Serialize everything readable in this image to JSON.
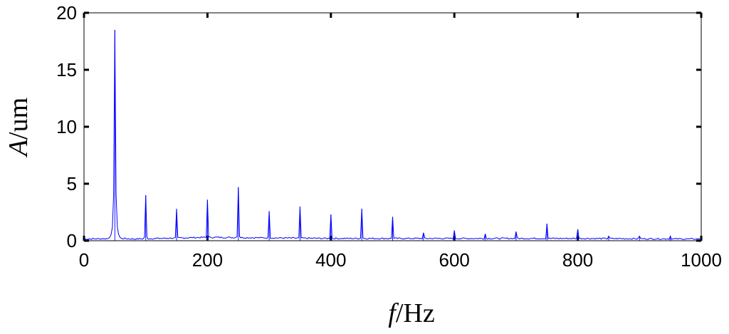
{
  "chart_data": {
    "type": "line",
    "xlabel": "f/Hz",
    "xlabel_italic": "f",
    "xlabel_rest": "/Hz",
    "ylabel": "A/um",
    "ylabel_italic": "A",
    "ylabel_rest": "/um",
    "xlim": [
      0,
      1000
    ],
    "ylim": [
      0,
      20
    ],
    "xticks": [
      0,
      200,
      400,
      600,
      800,
      1000
    ],
    "xtick_labels": [
      "0",
      "200",
      "400",
      "600",
      "800",
      "1000"
    ],
    "yticks": [
      0,
      5,
      10,
      15,
      20
    ],
    "ytick_labels": [
      "0",
      "5",
      "10",
      "15",
      "20"
    ],
    "grid": false,
    "legend": "none",
    "line_color": "#0000ff",
    "x_step": 2,
    "baseline": [
      [
        0,
        0.15
      ],
      [
        60,
        0.2
      ],
      [
        80,
        0.15
      ],
      [
        200,
        0.3
      ],
      [
        400,
        0.2
      ],
      [
        600,
        0.2
      ],
      [
        800,
        0.2
      ],
      [
        1000,
        0.15
      ]
    ],
    "peaks": [
      {
        "f": 50,
        "amplitude": 18.5
      },
      {
        "f": 100,
        "amplitude": 4.0
      },
      {
        "f": 150,
        "amplitude": 2.8
      },
      {
        "f": 200,
        "amplitude": 3.6
      },
      {
        "f": 250,
        "amplitude": 4.7
      },
      {
        "f": 300,
        "amplitude": 2.6
      },
      {
        "f": 350,
        "amplitude": 3.0
      },
      {
        "f": 400,
        "amplitude": 2.3
      },
      {
        "f": 450,
        "amplitude": 2.8
      },
      {
        "f": 500,
        "amplitude": 2.1
      },
      {
        "f": 550,
        "amplitude": 0.7
      },
      {
        "f": 600,
        "amplitude": 0.9
      },
      {
        "f": 650,
        "amplitude": 0.6
      },
      {
        "f": 700,
        "amplitude": 0.8
      },
      {
        "f": 750,
        "amplitude": 1.5
      },
      {
        "f": 800,
        "amplitude": 1.0
      },
      {
        "f": 850,
        "amplitude": 0.4
      },
      {
        "f": 900,
        "amplitude": 0.4
      },
      {
        "f": 950,
        "amplitude": 0.4
      }
    ]
  }
}
